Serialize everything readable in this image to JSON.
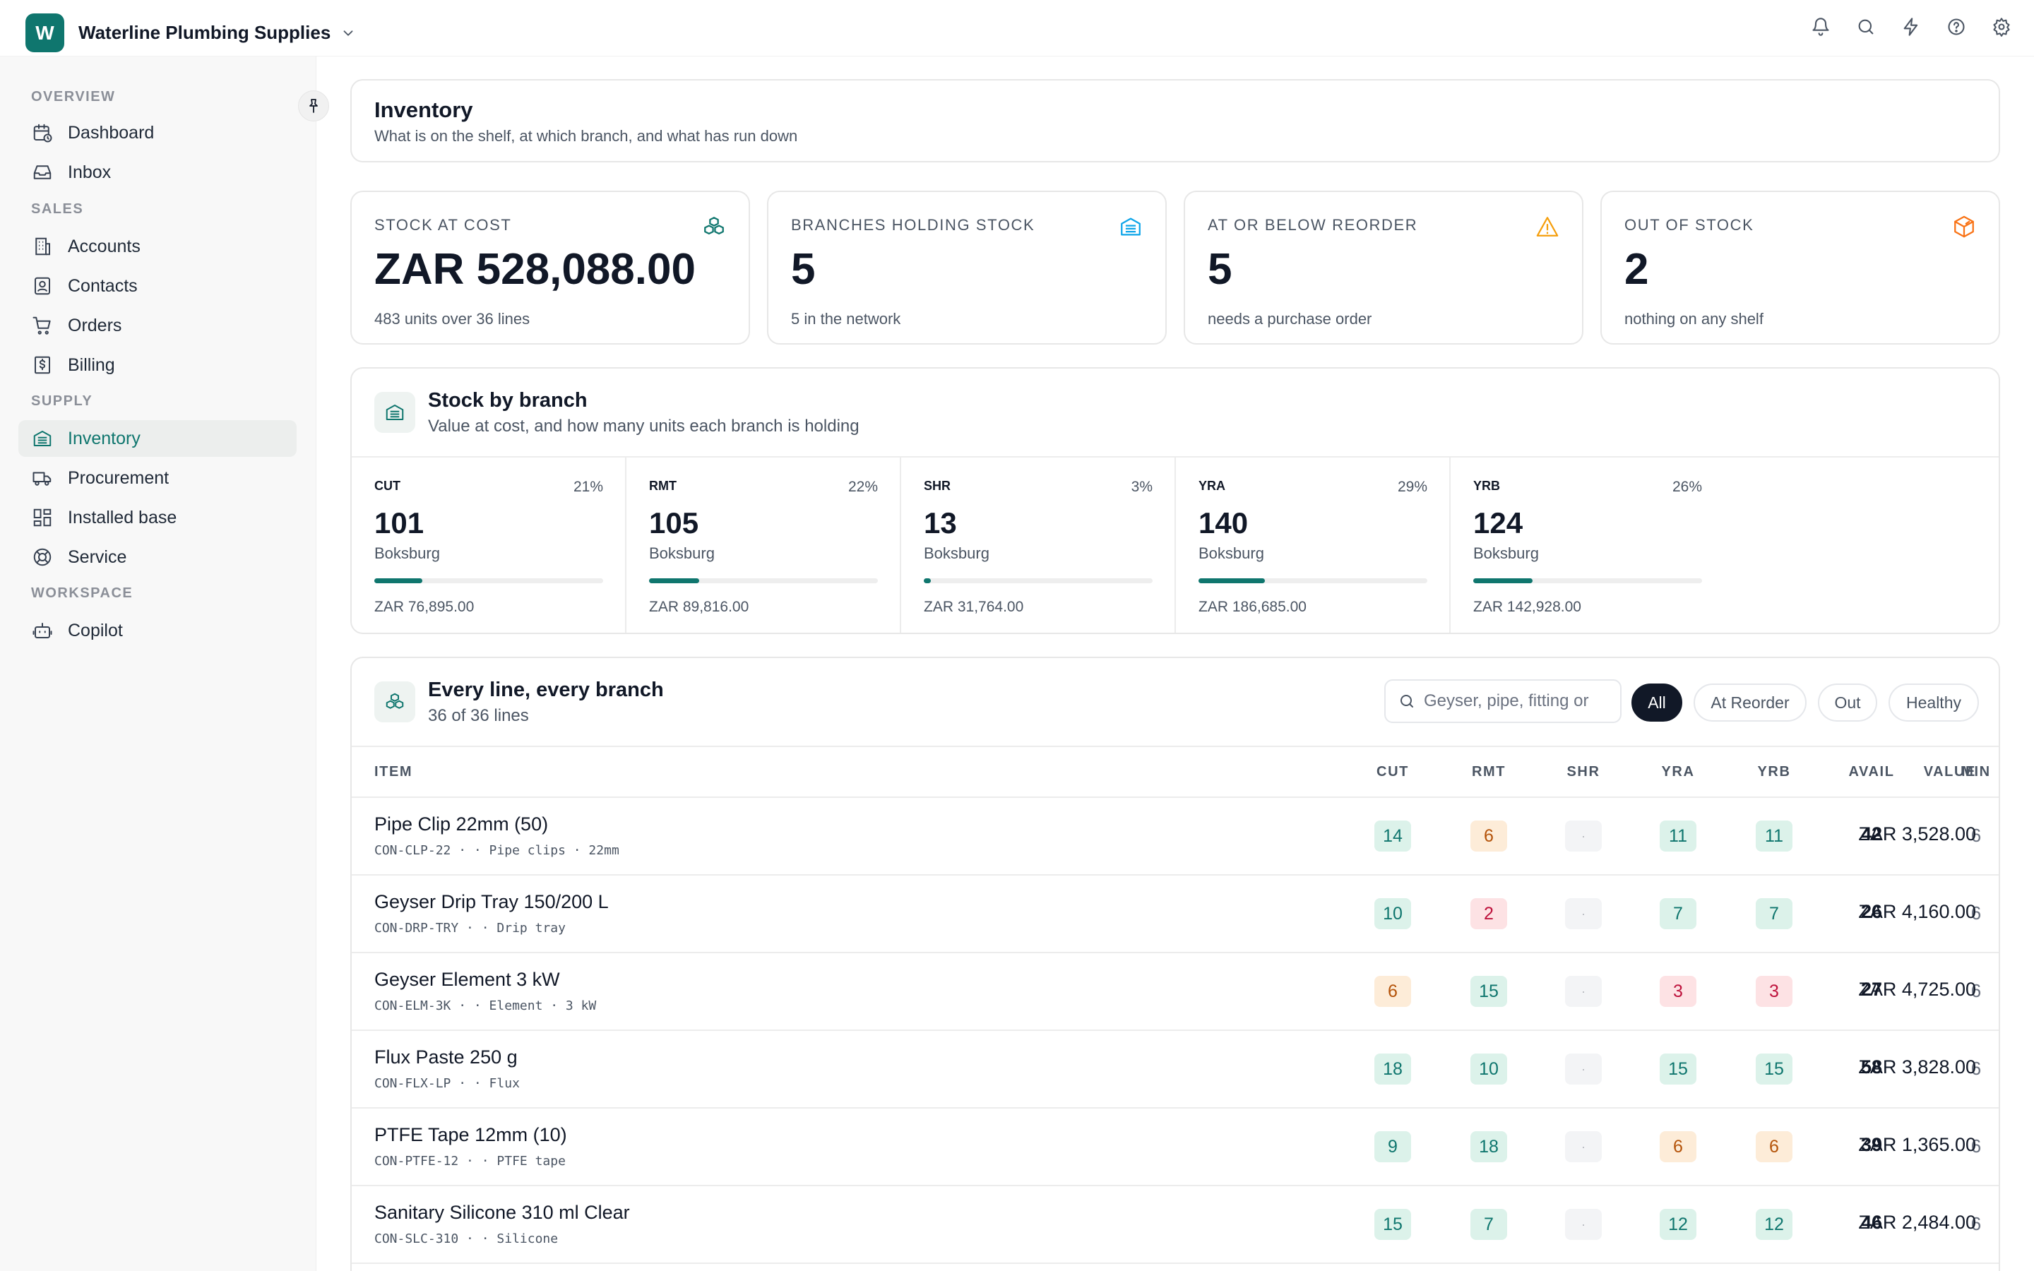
{
  "app": {
    "org_initial": "W",
    "org_name": "Waterline Plumbing Supplies",
    "top_icons": [
      "bell-icon",
      "search-icon",
      "bolt-icon",
      "help-icon",
      "gear-icon"
    ]
  },
  "sidebar": {
    "sections": [
      {
        "label": "OVERVIEW",
        "items": [
          {
            "label": "Dashboard",
            "icon": "calendar-clock-icon"
          },
          {
            "label": "Inbox",
            "icon": "inbox-icon"
          }
        ]
      },
      {
        "label": "SALES",
        "items": [
          {
            "label": "Accounts",
            "icon": "building-icon"
          },
          {
            "label": "Contacts",
            "icon": "contact-card-icon"
          },
          {
            "label": "Orders",
            "icon": "cart-icon"
          },
          {
            "label": "Billing",
            "icon": "receipt-dollar-icon"
          }
        ]
      },
      {
        "label": "SUPPLY",
        "items": [
          {
            "label": "Inventory",
            "icon": "warehouse-icon",
            "active": true
          },
          {
            "label": "Procurement",
            "icon": "truck-icon"
          },
          {
            "label": "Installed base",
            "icon": "grid-icon"
          },
          {
            "label": "Service",
            "icon": "lifebuoy-icon"
          }
        ]
      },
      {
        "label": "WORKSPACE",
        "items": [
          {
            "label": "Copilot",
            "icon": "robot-icon"
          }
        ]
      }
    ]
  },
  "header": {
    "title": "Inventory",
    "subtitle": "What is on the shelf, at which branch, and what has run down"
  },
  "kpis": [
    {
      "label": "STOCK AT COST",
      "value": "ZAR 528,088.00",
      "sub": "483 units over 36 lines",
      "icon": "boxes-icon",
      "color": "#0f766e"
    },
    {
      "label": "BRANCHES HOLDING STOCK",
      "value": "5",
      "sub": "5 in the network",
      "icon": "warehouse-icon",
      "color": "#0ea5e9"
    },
    {
      "label": "AT OR BELOW REORDER",
      "value": "5",
      "sub": "needs a purchase order",
      "icon": "warning-icon",
      "color": "#f59e0b"
    },
    {
      "label": "OUT OF STOCK",
      "value": "2",
      "sub": "nothing on any shelf",
      "icon": "package-x-icon",
      "color": "#f97316"
    }
  ],
  "branches_section": {
    "title": "Stock by branch",
    "subtitle": "Value at cost, and how many units each branch is holding",
    "branches": [
      {
        "code": "CUT",
        "pct": "21%",
        "share": 0.21,
        "units": "101",
        "location": "Boksburg",
        "value": "ZAR 76,895.00"
      },
      {
        "code": "RMT",
        "pct": "22%",
        "share": 0.22,
        "units": "105",
        "location": "Boksburg",
        "value": "ZAR 89,816.00"
      },
      {
        "code": "SHR",
        "pct": "3%",
        "share": 0.03,
        "units": "13",
        "location": "Boksburg",
        "value": "ZAR 31,764.00"
      },
      {
        "code": "YRA",
        "pct": "29%",
        "share": 0.29,
        "units": "140",
        "location": "Boksburg",
        "value": "ZAR 186,685.00"
      },
      {
        "code": "YRB",
        "pct": "26%",
        "share": 0.26,
        "units": "124",
        "location": "Boksburg",
        "value": "ZAR 142,928.00"
      }
    ]
  },
  "lines_section": {
    "title": "Every line, every branch",
    "subtitle": "36 of 36 lines",
    "search_placeholder": "Geyser, pipe, fitting or",
    "filters": [
      "All",
      "At Reorder",
      "Out",
      "Healthy"
    ],
    "active_filter": "All",
    "columns": [
      "ITEM",
      "CUT",
      "RMT",
      "SHR",
      "YRA",
      "YRB",
      "AVAIL",
      "MIN",
      "VALUE"
    ],
    "rows": [
      {
        "name": "Pipe Clip 22mm (50)",
        "meta": "CON-CLP-22 · · Pipe clips · 22mm",
        "cells": [
          {
            "v": "14",
            "s": "green"
          },
          {
            "v": "6",
            "s": "amber"
          },
          {
            "v": "·",
            "s": "empty"
          },
          {
            "v": "11",
            "s": "green"
          },
          {
            "v": "11",
            "s": "green"
          }
        ],
        "avail": "42",
        "min": "6",
        "value": "ZAR 3,528.00"
      },
      {
        "name": "Geyser Drip Tray 150/200 L",
        "meta": "CON-DRP-TRY · · Drip tray",
        "cells": [
          {
            "v": "10",
            "s": "green"
          },
          {
            "v": "2",
            "s": "red"
          },
          {
            "v": "·",
            "s": "empty"
          },
          {
            "v": "7",
            "s": "green"
          },
          {
            "v": "7",
            "s": "green"
          }
        ],
        "avail": "26",
        "min": "6",
        "value": "ZAR 4,160.00"
      },
      {
        "name": "Geyser Element 3 kW",
        "meta": "CON-ELM-3K · · Element · 3 kW",
        "cells": [
          {
            "v": "6",
            "s": "amber"
          },
          {
            "v": "15",
            "s": "green"
          },
          {
            "v": "·",
            "s": "empty"
          },
          {
            "v": "3",
            "s": "red"
          },
          {
            "v": "3",
            "s": "red"
          }
        ],
        "avail": "27",
        "min": "6",
        "value": "ZAR 4,725.00"
      },
      {
        "name": "Flux Paste 250 g",
        "meta": "CON-FLX-LP · · Flux",
        "cells": [
          {
            "v": "18",
            "s": "green"
          },
          {
            "v": "10",
            "s": "green"
          },
          {
            "v": "·",
            "s": "empty"
          },
          {
            "v": "15",
            "s": "green"
          },
          {
            "v": "15",
            "s": "green"
          }
        ],
        "avail": "58",
        "min": "6",
        "value": "ZAR 3,828.00"
      },
      {
        "name": "PTFE Tape 12mm (10)",
        "meta": "CON-PTFE-12 · · PTFE tape",
        "cells": [
          {
            "v": "9",
            "s": "green"
          },
          {
            "v": "18",
            "s": "green"
          },
          {
            "v": "·",
            "s": "empty"
          },
          {
            "v": "6",
            "s": "amber"
          },
          {
            "v": "6",
            "s": "amber"
          }
        ],
        "avail": "39",
        "min": "6",
        "value": "ZAR 1,365.00"
      },
      {
        "name": "Sanitary Silicone 310 ml Clear",
        "meta": "CON-SLC-310 · · Silicone",
        "cells": [
          {
            "v": "15",
            "s": "green"
          },
          {
            "v": "7",
            "s": "green"
          },
          {
            "v": "·",
            "s": "empty"
          },
          {
            "v": "12",
            "s": "green"
          },
          {
            "v": "12",
            "s": "green"
          }
        ],
        "avail": "46",
        "min": "6",
        "value": "ZAR 2,484.00"
      }
    ]
  }
}
